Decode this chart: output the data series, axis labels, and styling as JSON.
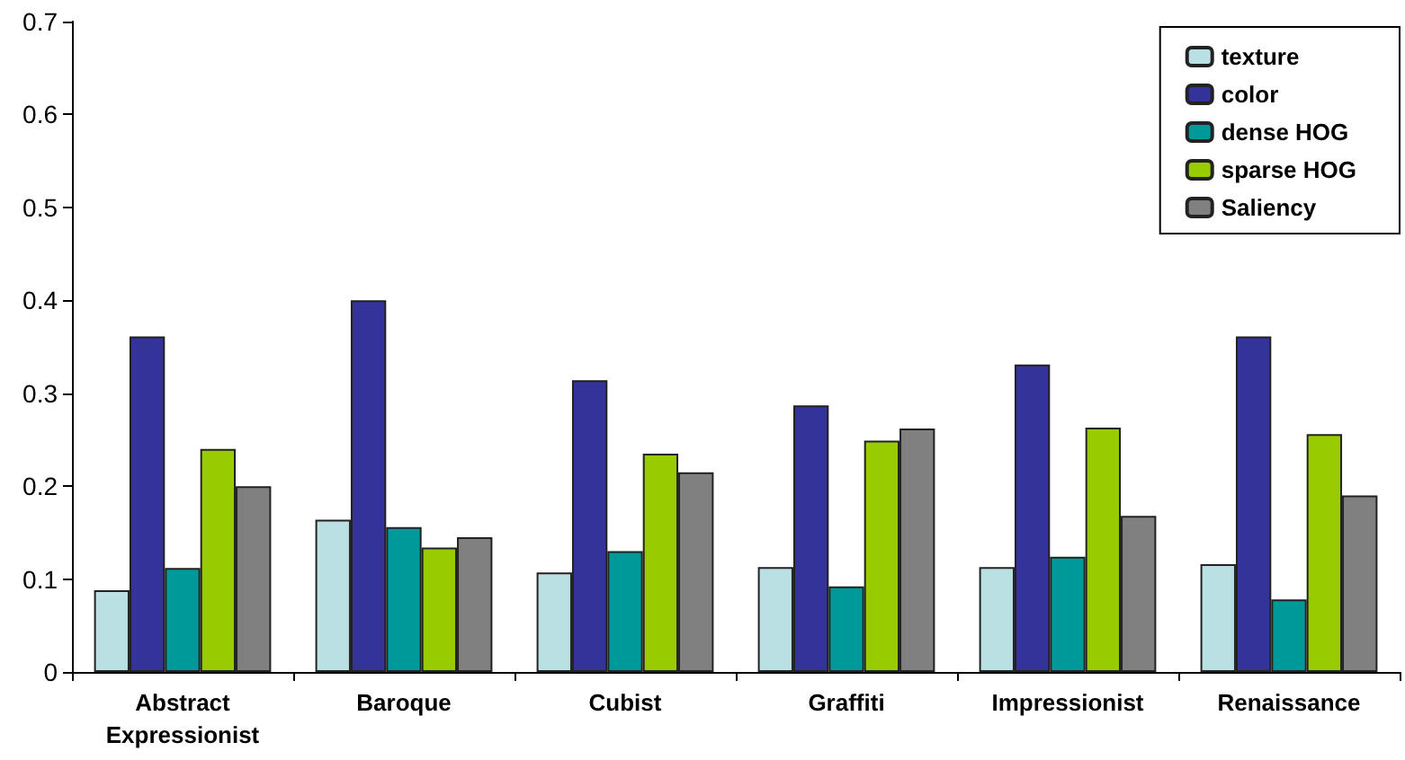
{
  "chart_data": {
    "type": "bar",
    "categories": [
      "Abstract Expressionist",
      "Baroque",
      "Cubist",
      "Graffiti",
      "Impressionist",
      "Renaissance"
    ],
    "series": [
      {
        "name": "texture",
        "color": "#bbe0e3",
        "values": [
          0.088,
          0.164,
          0.107,
          0.113,
          0.113,
          0.116
        ]
      },
      {
        "name": "color",
        "color": "#333399",
        "values": [
          0.361,
          0.4,
          0.314,
          0.287,
          0.331,
          0.361
        ]
      },
      {
        "name": "dense HOG",
        "color": "#009999",
        "values": [
          0.112,
          0.156,
          0.13,
          0.092,
          0.124,
          0.078
        ]
      },
      {
        "name": "sparse HOG",
        "color": "#99cc00",
        "values": [
          0.24,
          0.134,
          0.235,
          0.249,
          0.263,
          0.256
        ]
      },
      {
        "name": "Saliency",
        "color": "#808080",
        "values": [
          0.2,
          0.145,
          0.215,
          0.262,
          0.168,
          0.19
        ]
      }
    ],
    "ylim": [
      0,
      0.7
    ],
    "yticks": [
      0,
      0.1,
      0.2,
      0.3,
      0.4,
      0.5,
      0.6,
      0.7
    ],
    "grid": false,
    "legend": "top right"
  }
}
